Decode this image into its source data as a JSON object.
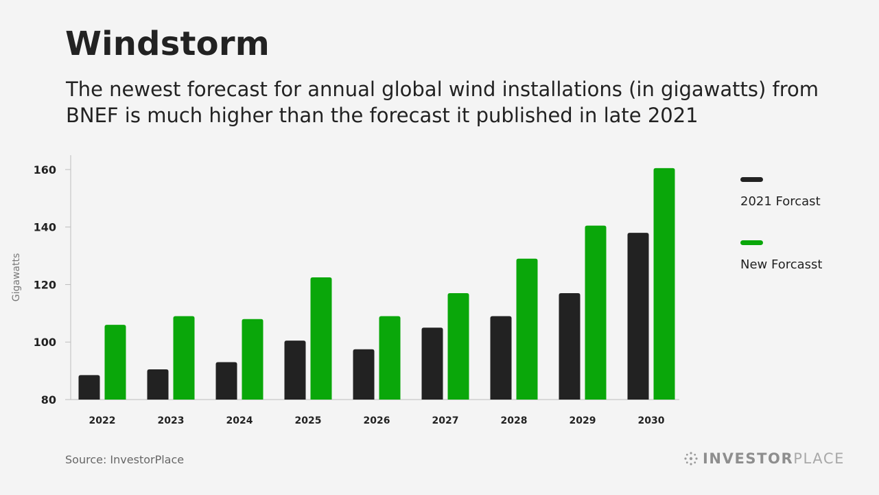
{
  "title": "Windstorm",
  "subtitle": "The newest forecast for annual global wind installations (in gigawatts) from BNEF is much higher than the forecast it published in late 2021",
  "source": "Source: InvestorPlace",
  "brand": {
    "strong": "INVESTOR",
    "light": "PLACE"
  },
  "colors": {
    "series_2021": "#222222",
    "series_new": "#0aa70a",
    "axis": "#bdbdbd"
  },
  "legend": [
    {
      "label": "2021 Forcast",
      "color": "#222222"
    },
    {
      "label": "New Forcasst",
      "color": "#0aa70a"
    }
  ],
  "chart_data": {
    "type": "bar",
    "title": "Windstorm",
    "xlabel": "",
    "ylabel": "Gigawatts",
    "ylim": [
      80,
      165
    ],
    "yticks": [
      80,
      100,
      120,
      140,
      160
    ],
    "categories": [
      "2022",
      "2023",
      "2024",
      "2025",
      "2026",
      "2027",
      "2028",
      "2029",
      "2030"
    ],
    "series": [
      {
        "name": "2021 Forcast",
        "values": [
          88.5,
          90.5,
          93,
          100.5,
          97.5,
          105,
          109,
          117,
          138
        ]
      },
      {
        "name": "New Forcasst",
        "values": [
          106,
          109,
          108,
          122.5,
          109,
          117,
          129,
          140.5,
          160.5
        ]
      }
    ],
    "legend_position": "right"
  }
}
